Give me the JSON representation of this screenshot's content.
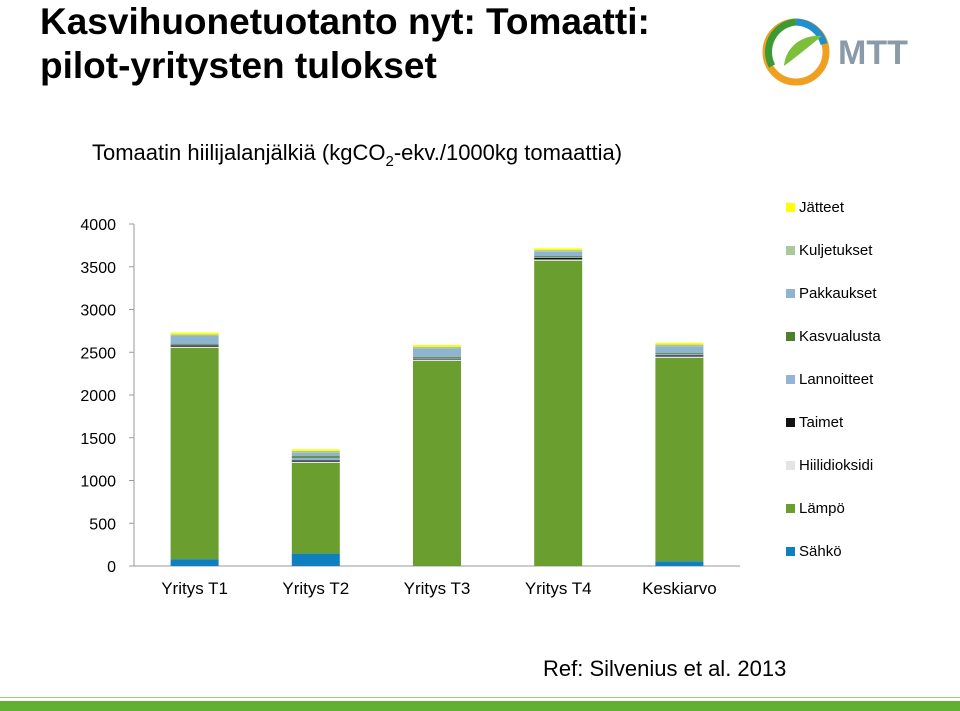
{
  "slide": {
    "title_line1": "Kasvihuonetuotanto nyt: Tomaatti:",
    "title_line2": "pilot-yritysten tulokset",
    "logo_text": "MTT",
    "reference": "Ref: Silvenius et al. 2013",
    "accent_color": "#61b033"
  },
  "chart_title": {
    "before_sub": "Tomaatin hiilijalanjälkiä (kgCO",
    "sub": "2",
    "after_sub": "-ekv./1000kg tomaattia)"
  },
  "chart_data": {
    "type": "bar",
    "stacked": true,
    "title": "Tomaatin hiilijalanjälkiä (kgCO2-ekv./1000kg tomaattia)",
    "categories": [
      "Yritys T1",
      "Yritys T2",
      "Yritys T3",
      "Yritys T4",
      "Keskiarvo"
    ],
    "ylim": [
      0,
      4000
    ],
    "yticks": [
      0,
      500,
      1000,
      1500,
      2000,
      2500,
      3000,
      3500,
      4000
    ],
    "grid": false,
    "legend_position": "right",
    "series": [
      {
        "name": "Sähkö",
        "color": "#0f7fbf",
        "values": [
          80,
          145,
          0,
          0,
          55
        ]
      },
      {
        "name": "Lämpö",
        "color": "#6a9e2f",
        "values": [
          2470,
          1060,
          2400,
          3570,
          2380
        ]
      },
      {
        "name": "Hiilidioksidi",
        "color": "#e4e4e4",
        "values": [
          15,
          15,
          15,
          15,
          15
        ]
      },
      {
        "name": "Taimet",
        "color": "#111111",
        "values": [
          15,
          15,
          10,
          20,
          15
        ]
      },
      {
        "name": "Lannoitteet",
        "color": "#95b3d7",
        "values": [
          10,
          30,
          10,
          10,
          15
        ]
      },
      {
        "name": "Kasvualusta",
        "color": "#4f7f2a",
        "values": [
          10,
          20,
          10,
          10,
          10
        ]
      },
      {
        "name": "Pakkaukset",
        "color": "#8eb4cf",
        "values": [
          90,
          40,
          100,
          50,
          80
        ]
      },
      {
        "name": "Kuljetukset",
        "color": "#a9c99a",
        "values": [
          20,
          20,
          20,
          20,
          20
        ]
      },
      {
        "name": "Jätteet",
        "color": "#ffff00",
        "values": [
          20,
          20,
          20,
          20,
          20
        ]
      }
    ]
  }
}
